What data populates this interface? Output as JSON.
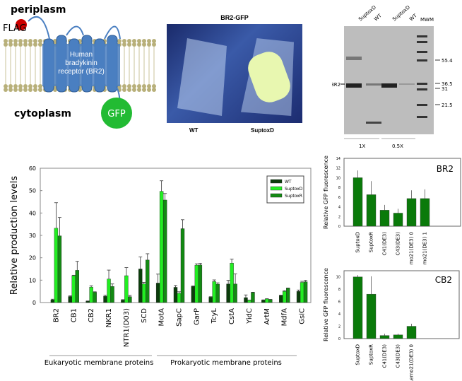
{
  "diagram": {
    "periplasm": "periplasm",
    "cytoplasm": "cytoplasm",
    "flag": "FLAG",
    "receptor": "Human bradykinin receptor (BR2)",
    "gfp": "GFP"
  },
  "photo": {
    "title": "BR2-GFP",
    "left_label": "WT",
    "right_label": "SuptoxD"
  },
  "gel": {
    "lanes": [
      "SuptoxD",
      "WT",
      "SuptoxD",
      "WT",
      "MWM"
    ],
    "marker_labels": [
      "55.4",
      "36.5",
      "31",
      "21.5"
    ],
    "band_label": "BR2",
    "loading": [
      "1X",
      "0.5X"
    ]
  },
  "colors": {
    "WT": "#0b3d0b",
    "SuptoxD": "#22ee22",
    "SuptoxR": "#138a13",
    "single": "#0a7a0a"
  },
  "chart_data": [
    {
      "type": "bar",
      "ylabel": "Relative production levels",
      "ylim": [
        0,
        60
      ],
      "yticks": [
        0,
        10,
        20,
        30,
        40,
        50,
        60
      ],
      "legend": "top-right",
      "categories": [
        "BR2",
        "CB1",
        "CB2",
        "NKR1",
        "NTR1(D03)",
        "SCD",
        "MotA",
        "SapC",
        "GarP",
        "TcyL",
        "CstA",
        "YidC",
        "ArtM",
        "MdfA",
        "GsiC"
      ],
      "groups": [
        {
          "label": "Eukaryotic membrane proteins"
        },
        {
          "label": "Prokaryotic membrane proteins"
        }
      ],
      "series": [
        {
          "name": "WT",
          "values": [
            1.2,
            2.7,
            0.6,
            2.8,
            1.1,
            15,
            8.7,
            6.8,
            7.2,
            2.4,
            8.3,
            2.2,
            1.0,
            3.1,
            5
          ],
          "errors": [
            0.3,
            0.3,
            0.1,
            0.5,
            0.2,
            5.4,
            4,
            0.8,
            0.2,
            0.2,
            1.6,
            1.2,
            0.2,
            0.2,
            0.6
          ]
        },
        {
          "name": "SuptoxD",
          "values": [
            33.2,
            12,
            6.9,
            10.5,
            12,
            8.3,
            49.7,
            4.1,
            16.7,
            9.4,
            17.6,
            1.0,
            1.6,
            5,
            9
          ],
          "errors": [
            11.4,
            0.2,
            0.6,
            4,
            3.6,
            0.7,
            4.7,
            0.7,
            0.6,
            0.7,
            1.8,
            0.1,
            0.1,
            0.3,
            0.5
          ]
        },
        {
          "name": "SuptoxR",
          "values": [
            29.8,
            14.4,
            4.6,
            7.2,
            2.6,
            19,
            45.8,
            33,
            16.8,
            8.2,
            8.3,
            4.5,
            1.3,
            6.4,
            9.3
          ],
          "errors": [
            8.2,
            4,
            0.2,
            1.1,
            0.6,
            2.8,
            2.9,
            4,
            0.7,
            0.6,
            4.5,
            0.1,
            0.1,
            0.1,
            0.6
          ]
        }
      ]
    },
    {
      "type": "bar",
      "title": "BR2",
      "ylabel": "Relative GFP fluorescence",
      "ylim": [
        0,
        14
      ],
      "yticks": [
        0,
        2,
        4,
        6,
        8,
        10,
        12,
        14
      ],
      "categories": [
        "SuptoxD",
        "SuptoxR",
        "C41(DE3)",
        "C43(DE3)",
        "Lemo21(DE3) 0",
        "Lemo21(DE3) 1"
      ],
      "values": [
        10,
        6.5,
        3.3,
        2.7,
        5.7,
        5.7
      ],
      "errors": [
        1.5,
        2.8,
        1.1,
        0.9,
        1.7,
        1.9
      ]
    },
    {
      "type": "bar",
      "title": "CB2",
      "ylabel": "Relative GFP fluorescence",
      "ylim": [
        0,
        11
      ],
      "yticks": [
        0,
        2,
        4,
        6,
        8,
        10
      ],
      "categories": [
        "SuptoxD",
        "SuptoxR",
        "C41(DE3)",
        "C43(DE3)",
        "Lemo21(DE3) 0"
      ],
      "values": [
        10,
        7.2,
        0.5,
        0.6,
        2
      ],
      "errors": [
        0.3,
        2.9,
        0.3,
        0.2,
        0.4
      ]
    }
  ]
}
